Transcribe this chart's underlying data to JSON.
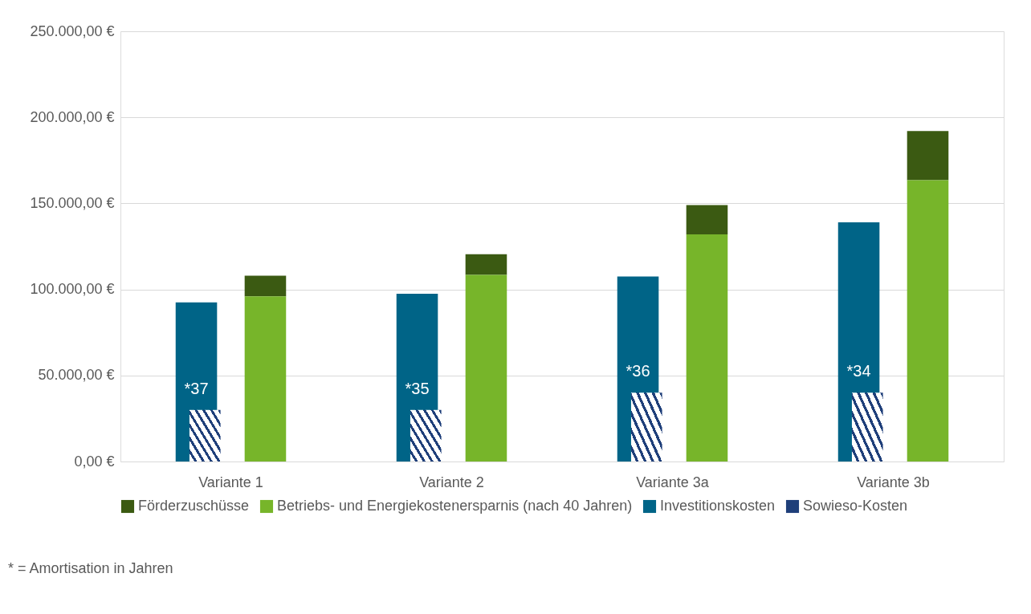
{
  "chart_data": {
    "type": "bar",
    "categories": [
      "Variante 1",
      "Variante 2",
      "Variante 3a",
      "Variante 3b"
    ],
    "series": [
      {
        "name": "Förderzuschüsse",
        "color": "#3b5a12",
        "values": [
          12000,
          12000,
          17000,
          28500
        ],
        "base": [
          96000,
          108500,
          132000,
          163500
        ]
      },
      {
        "name": "Betriebs- und Energiekostenersparnis (nach 40 Jahren)",
        "color": "#77b52a",
        "values": [
          96000,
          108500,
          132000,
          163500
        ]
      },
      {
        "name": "Investitionskosten",
        "color": "#006487",
        "values": [
          92500,
          97500,
          107500,
          139000
        ]
      },
      {
        "name": "Sowieso-Kosten",
        "color": "#1f3f7a",
        "values": [
          30000,
          30000,
          40000,
          40000
        ]
      }
    ],
    "ylim": [
      0,
      250000
    ],
    "yticks": [
      {
        "value": 0,
        "label": "0,00 €"
      },
      {
        "value": 50000,
        "label": "50.000,00 €"
      },
      {
        "value": 100000,
        "label": "100.000,00 €"
      },
      {
        "value": 150000,
        "label": "150.000,00 €"
      },
      {
        "value": 200000,
        "label": "200.000,00 €"
      },
      {
        "value": 250000,
        "label": "250.000,00 €"
      }
    ],
    "grid": "y",
    "legend": "bottom",
    "annotations": [
      "*37",
      "*35",
      "*36",
      "*34",
      "* = Amortisation in Jahren"
    ]
  }
}
